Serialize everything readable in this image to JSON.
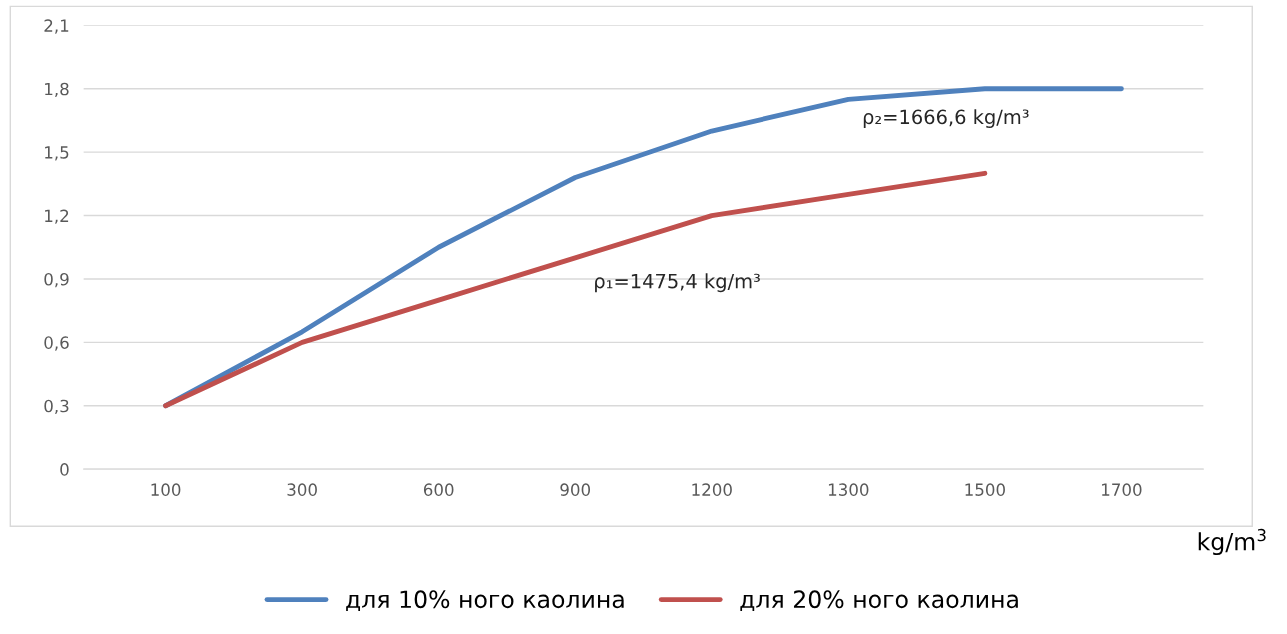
{
  "chart_data": {
    "type": "line",
    "categories": [
      "100",
      "300",
      "600",
      "900",
      "1200",
      "1300",
      "1500",
      "1700"
    ],
    "series": [
      {
        "name": "для 10% ного каолина",
        "color": "#4f81bd",
        "values": [
          0.3,
          0.65,
          1.05,
          1.38,
          1.6,
          1.75,
          1.8,
          1.8
        ]
      },
      {
        "name": "для 20% ного каолина",
        "color": "#c0504d",
        "values": [
          0.3,
          0.6,
          0.8,
          1.0,
          1.2,
          1.3,
          1.4,
          null
        ]
      }
    ],
    "xlabel": "kg/m$^{3}$",
    "ylim": [
      0,
      2.1
    ],
    "yticks": [
      {
        "value": 0,
        "label": "0"
      },
      {
        "value": 0.3,
        "label": "0,3"
      },
      {
        "value": 0.6,
        "label": "0,6"
      },
      {
        "value": 0.9,
        "label": "0,9"
      },
      {
        "value": 1.2,
        "label": "1,2"
      },
      {
        "value": 1.5,
        "label": "1,5"
      },
      {
        "value": 1.8,
        "label": "1,8"
      },
      {
        "value": 2.1,
        "label": "2,1"
      }
    ],
    "annotations": [
      "ρ₂=1666,6 kg/m³",
      "ρ₁=1475,4 kg/m³"
    ],
    "grid": "y",
    "legend": "bottom",
    "marker": "none",
    "line_style": "solid"
  }
}
